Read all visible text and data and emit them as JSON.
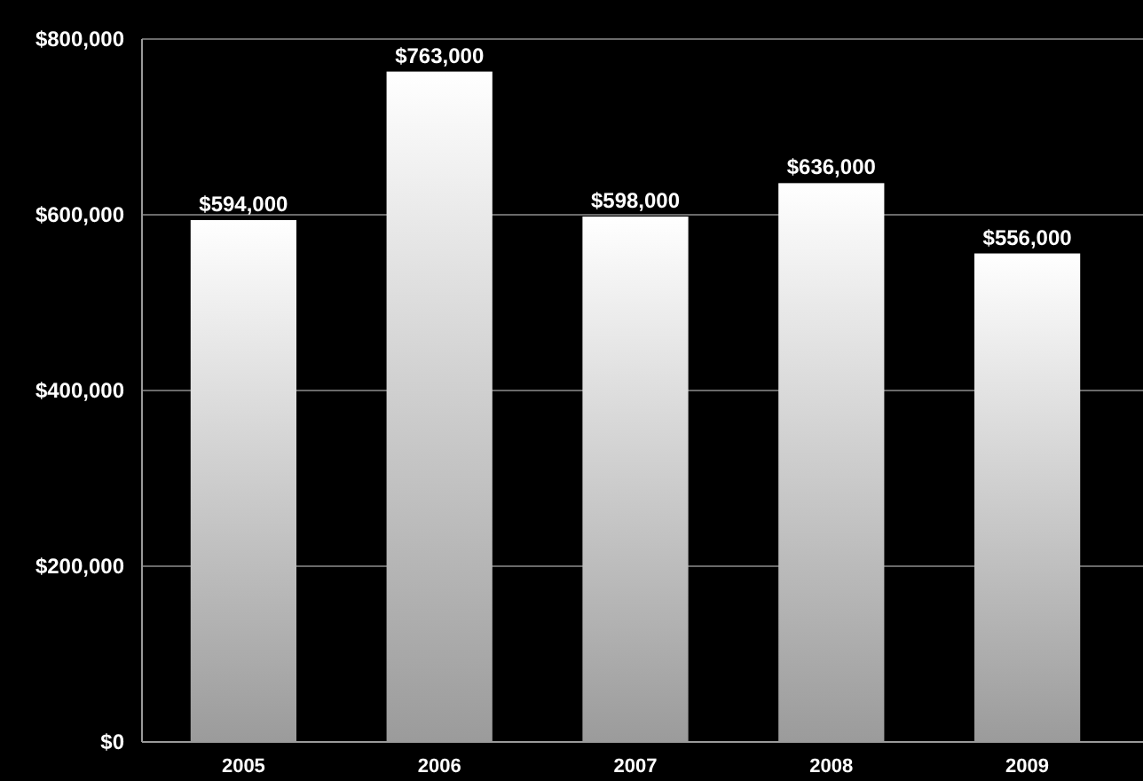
{
  "chart_data": {
    "type": "bar",
    "categories": [
      "2005",
      "2006",
      "2007",
      "2008",
      "2009"
    ],
    "values": [
      594000,
      763000,
      598000,
      636000,
      556000
    ],
    "value_labels": [
      "$594,000",
      "$763,000",
      "$598,000",
      "$636,000",
      "$556,000"
    ],
    "color": "#ffffff",
    "ylim": [
      0,
      800000
    ],
    "yticks": [
      {
        "value": 0,
        "label": "$0"
      },
      {
        "value": 200000,
        "label": "$200,000"
      },
      {
        "value": 400000,
        "label": "$400,000"
      },
      {
        "value": 600000,
        "label": "$600,000"
      },
      {
        "value": 800000,
        "label": "$800,000"
      }
    ],
    "grid": true
  }
}
